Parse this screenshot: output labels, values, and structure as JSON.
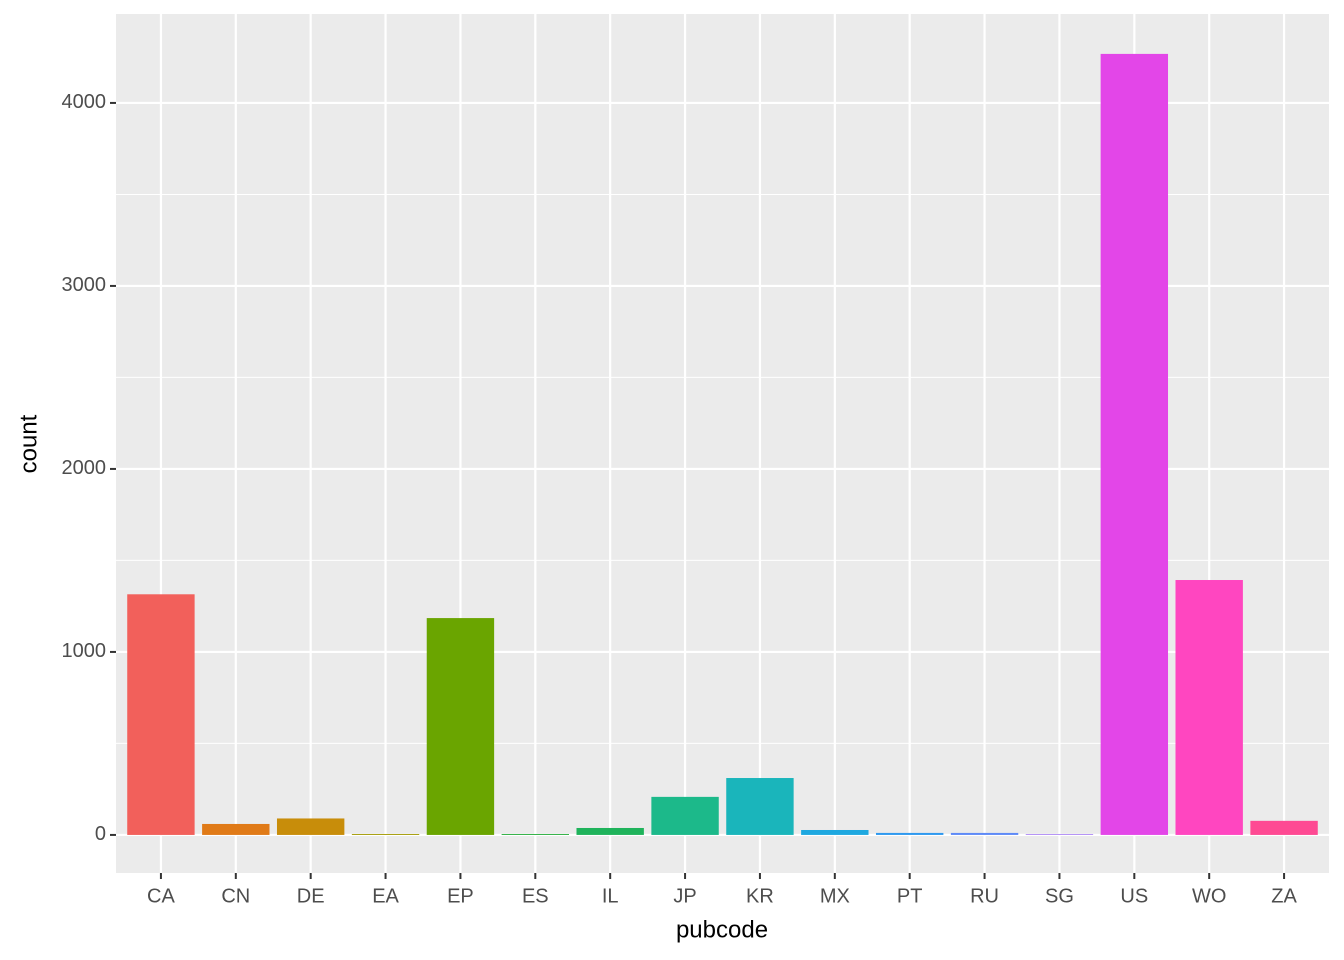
{
  "chart_data": {
    "type": "bar",
    "x_label": "pubcode",
    "y_label": "count",
    "categories": [
      "CA",
      "CN",
      "DE",
      "EA",
      "EP",
      "ES",
      "IL",
      "JP",
      "KR",
      "MX",
      "PT",
      "RU",
      "SG",
      "US",
      "WO",
      "ZA"
    ],
    "values": [
      1315,
      60,
      90,
      5,
      1185,
      5,
      38,
      208,
      311,
      27,
      11,
      11,
      4,
      4268,
      1393,
      77
    ],
    "colors": [
      "#F2605B",
      "#E07A17",
      "#C88D0A",
      "#A39A00",
      "#6AA500",
      "#27AE3D",
      "#1FB35B",
      "#1CB98A",
      "#1AB5BB",
      "#1EA8E0",
      "#2E99EF",
      "#5E8AF7",
      "#9C6FF3",
      "#E346E8",
      "#FF46C0",
      "#FE4A93"
    ],
    "ylim": [
      -208,
      4486
    ],
    "yticks": [
      0,
      1000,
      2000,
      3000,
      4000
    ],
    "grid": true
  }
}
